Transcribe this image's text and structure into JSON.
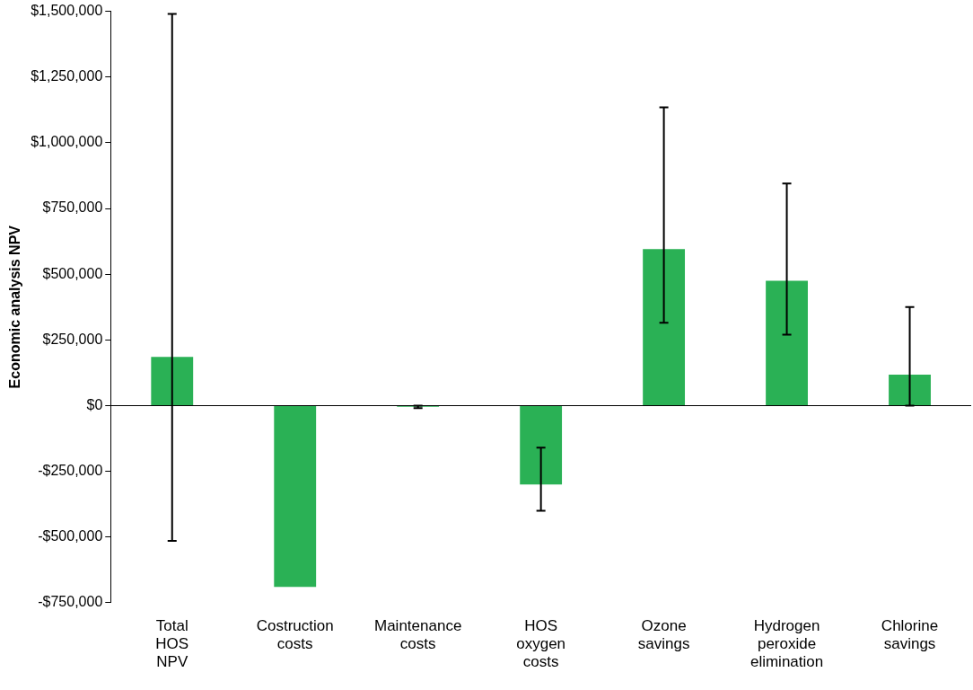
{
  "chart_data": {
    "type": "bar",
    "ylabel": "Economic analysis NPV",
    "categories": [
      "Total HOS NPV",
      "Costruction costs",
      "Maintenance costs",
      "HOS oxygen costs",
      "Ozone savings",
      "Hydrogen peroxide elimination",
      "Chlorine savings"
    ],
    "values": [
      185000,
      -690000,
      -5000,
      -300000,
      595000,
      475000,
      118000
    ],
    "errors": [
      [
        -515000,
        1490000
      ],
      null,
      [
        -10000,
        0
      ],
      [
        -400000,
        -160000
      ],
      [
        315000,
        1135000
      ],
      [
        270000,
        845000
      ],
      [
        0,
        375000
      ]
    ],
    "color": "#2ab155",
    "ylim": [
      -750000,
      1500000
    ],
    "yticks": [
      {
        "value": -750000,
        "label": "-$750,000"
      },
      {
        "value": -500000,
        "label": "-$500,000"
      },
      {
        "value": -250000,
        "label": "-$250,000"
      },
      {
        "value": 0,
        "label": "$0"
      },
      {
        "value": 250000,
        "label": "$250,000"
      },
      {
        "value": 500000,
        "label": "$500,000"
      },
      {
        "value": 750000,
        "label": "$750,000"
      },
      {
        "value": 1000000,
        "label": "$1,000,000"
      },
      {
        "value": 1250000,
        "label": "$1,250,000"
      },
      {
        "value": 1500000,
        "label": "$1,500,000"
      }
    ],
    "grid": false,
    "legend": false
  }
}
